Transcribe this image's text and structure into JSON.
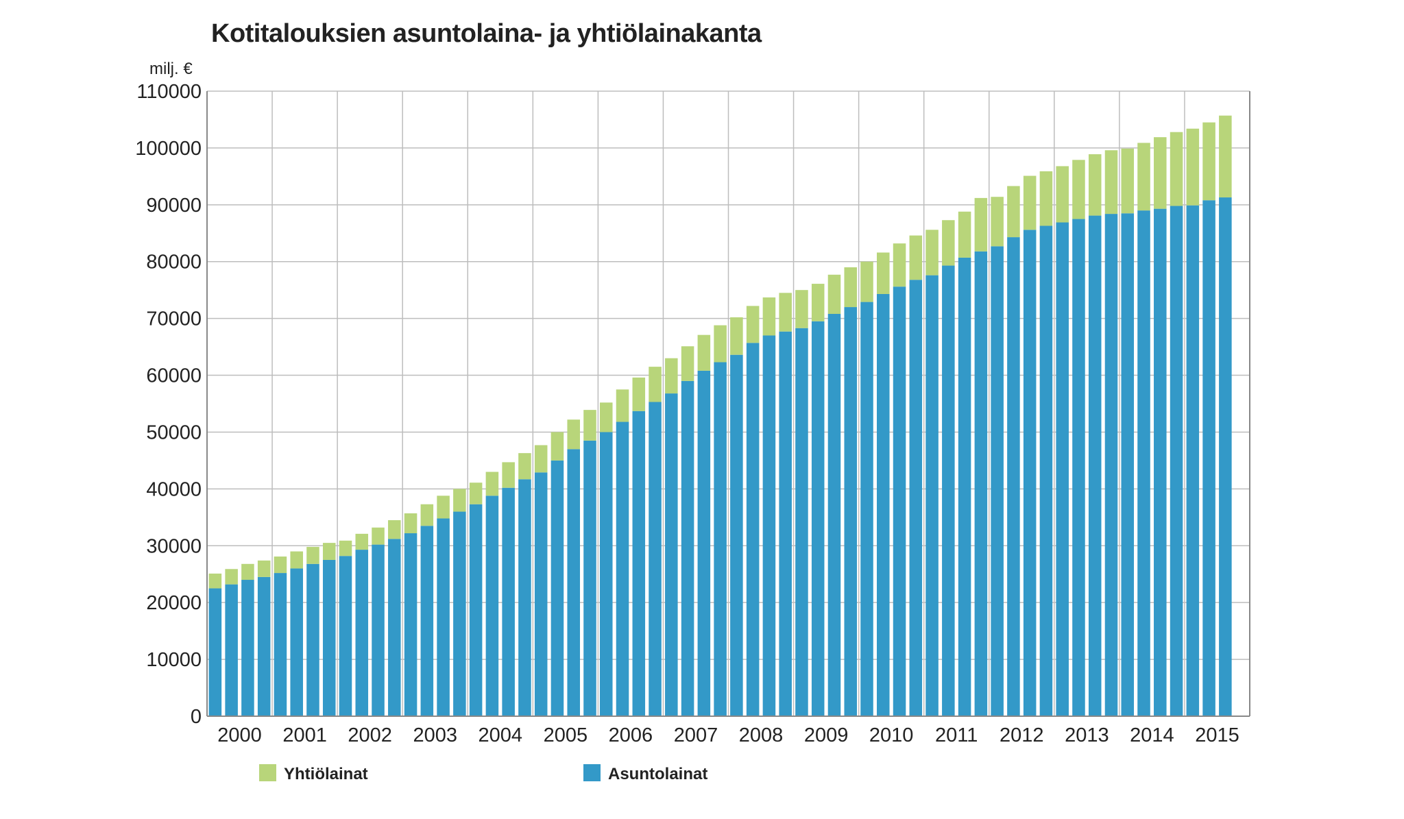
{
  "chart_data": {
    "type": "bar",
    "stacked": true,
    "title": "Kotitalouksien asuntolaina- ja yhtiölainakanta",
    "ylabel": "milj. €",
    "xlabel": "",
    "ylim": [
      0,
      110000
    ],
    "yticks": [
      0,
      10000,
      20000,
      30000,
      40000,
      50000,
      60000,
      70000,
      80000,
      90000,
      100000,
      110000
    ],
    "year_labels": [
      "2000",
      "2001",
      "2002",
      "2003",
      "2004",
      "2005",
      "2006",
      "2007",
      "2008",
      "2009",
      "2010",
      "2011",
      "2012",
      "2013",
      "2014",
      "2015"
    ],
    "bars_per_year": 4,
    "grid": true,
    "legend_position": "bottom",
    "colors": {
      "Asuntolainat": "#3399c8",
      "Yhtiölainat": "#b8d57a",
      "grid": "#bdbdbd",
      "axis": "#888888"
    },
    "series": [
      {
        "name": "Asuntolainat",
        "values": [
          22500,
          23200,
          24000,
          24500,
          25200,
          26000,
          26800,
          27500,
          28200,
          29300,
          30200,
          31200,
          32200,
          33500,
          34800,
          36000,
          37300,
          38800,
          40200,
          41700,
          42900,
          45000,
          47000,
          48500,
          50000,
          51800,
          53700,
          55300,
          56800,
          59000,
          60800,
          62300,
          63600,
          65700,
          67000,
          67700,
          68300,
          69500,
          70800,
          72000,
          72900,
          74300,
          75600,
          76800,
          77600,
          79300,
          80700,
          81800,
          82700,
          84300,
          85600,
          86300,
          86900,
          87500,
          88100,
          88400,
          88500,
          89000,
          89300,
          89800,
          89900,
          90800,
          91300
        ]
      },
      {
        "name": "Yhtiölainat",
        "values": [
          2600,
          2700,
          2800,
          2900,
          2900,
          3000,
          3000,
          3000,
          2700,
          2800,
          3000,
          3300,
          3500,
          3800,
          4000,
          4000,
          3800,
          4200,
          4500,
          4600,
          4800,
          5000,
          5200,
          5400,
          5200,
          5700,
          5900,
          6200,
          6200,
          6100,
          6300,
          6500,
          6600,
          6500,
          6700,
          6800,
          6700,
          6600,
          6900,
          7000,
          7100,
          7300,
          7600,
          7800,
          8000,
          8000,
          8100,
          9400,
          8700,
          9000,
          9500,
          9600,
          9900,
          10400,
          10800,
          11200,
          11400,
          11900,
          12600,
          13000,
          13500,
          13700,
          14400
        ]
      }
    ]
  }
}
